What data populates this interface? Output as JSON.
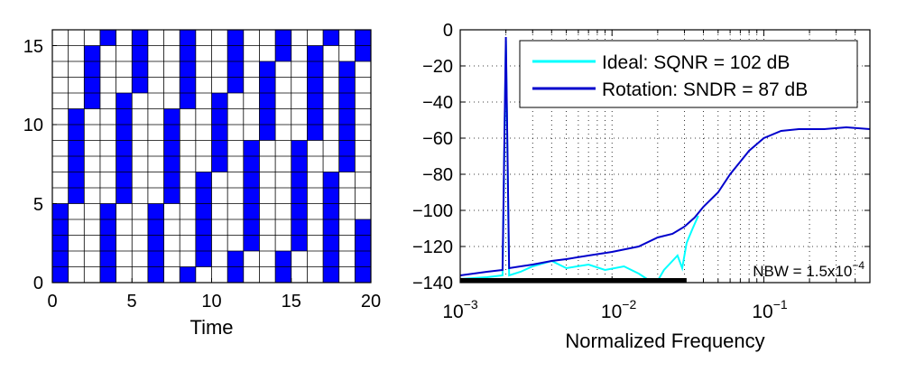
{
  "chart_data": [
    {
      "type": "heatmap",
      "xlabel": "Time",
      "ylabel": "",
      "xlim": [
        0,
        20
      ],
      "ylim": [
        0,
        16
      ],
      "x_ticks": [
        "0",
        "5",
        "10",
        "15",
        "20"
      ],
      "y_ticks": [
        "0",
        "5",
        "10",
        "15"
      ],
      "fill_color": "#0000FF",
      "grid": true,
      "columns": [
        {
          "t": 0,
          "filled_rows": [
            [
              0,
              5
            ]
          ]
        },
        {
          "t": 1,
          "filled_rows": [
            [
              5,
              11
            ]
          ]
        },
        {
          "t": 2,
          "filled_rows": [
            [
              11,
              15
            ]
          ]
        },
        {
          "t": 3,
          "filled_rows": [
            [
              0,
              5
            ],
            [
              15,
              16
            ]
          ]
        },
        {
          "t": 4,
          "filled_rows": [
            [
              5,
              12
            ]
          ]
        },
        {
          "t": 5,
          "filled_rows": [
            [
              12,
              16
            ]
          ]
        },
        {
          "t": 6,
          "filled_rows": [
            [
              0,
              5
            ]
          ]
        },
        {
          "t": 7,
          "filled_rows": [
            [
              5,
              11
            ]
          ]
        },
        {
          "t": 8,
          "filled_rows": [
            [
              0,
              1
            ],
            [
              11,
              16
            ]
          ]
        },
        {
          "t": 9,
          "filled_rows": [
            [
              1,
              7
            ]
          ]
        },
        {
          "t": 10,
          "filled_rows": [
            [
              7,
              12
            ]
          ]
        },
        {
          "t": 11,
          "filled_rows": [
            [
              0,
              2
            ],
            [
              12,
              16
            ]
          ]
        },
        {
          "t": 12,
          "filled_rows": [
            [
              2,
              9
            ]
          ]
        },
        {
          "t": 13,
          "filled_rows": [
            [
              9,
              14
            ]
          ]
        },
        {
          "t": 14,
          "filled_rows": [
            [
              0,
              2
            ],
            [
              14,
              16
            ]
          ]
        },
        {
          "t": 15,
          "filled_rows": [
            [
              2,
              9
            ]
          ]
        },
        {
          "t": 16,
          "filled_rows": [
            [
              9,
              15
            ]
          ]
        },
        {
          "t": 17,
          "filled_rows": [
            [
              0,
              7
            ],
            [
              15,
              16
            ]
          ]
        },
        {
          "t": 18,
          "filled_rows": [
            [
              7,
              14
            ]
          ]
        },
        {
          "t": 19,
          "filled_rows": [
            [
              0,
              4
            ],
            [
              14,
              16
            ]
          ]
        }
      ]
    },
    {
      "type": "line",
      "xlabel": "Normalized Frequency",
      "ylabel": "",
      "x_scale": "log",
      "xlim": [
        0.001,
        0.5
      ],
      "ylim": [
        -140,
        0
      ],
      "x_ticks": [
        {
          "value": 0.001,
          "base": "10",
          "exp": "−3"
        },
        {
          "value": 0.01,
          "base": "10",
          "exp": "−2"
        },
        {
          "value": 0.1,
          "base": "10",
          "exp": "−1"
        }
      ],
      "y_ticks": [
        "0",
        "−20",
        "−40",
        "−60",
        "−80",
        "−100",
        "−120",
        "−140"
      ],
      "grid": true,
      "grid_style": "dotted",
      "legend_position": "top-right",
      "series": [
        {
          "name": "Ideal: SQNR = 102 dB",
          "color": "#00FFFF",
          "points": [
            [
              0.001,
              -138
            ],
            [
              0.0015,
              -137
            ],
            [
              0.0019,
              -136
            ],
            [
              0.002,
              -6
            ],
            [
              0.0021,
              -136
            ],
            [
              0.0025,
              -134
            ],
            [
              0.003,
              -131
            ],
            [
              0.004,
              -128
            ],
            [
              0.005,
              -132
            ],
            [
              0.007,
              -130
            ],
            [
              0.009,
              -133
            ],
            [
              0.012,
              -131
            ],
            [
              0.015,
              -135
            ],
            [
              0.017,
              -138
            ],
            [
              0.02,
              -139
            ],
            [
              0.022,
              -133
            ],
            [
              0.025,
              -128
            ],
            [
              0.027,
              -125
            ],
            [
              0.029,
              -132
            ],
            [
              0.031,
              -118
            ],
            [
              0.034,
              -110
            ],
            [
              0.037,
              -103
            ]
          ]
        },
        {
          "name": "Rotation: SNDR = 87 dB",
          "color": "#0000CC",
          "points": [
            [
              0.001,
              -136
            ],
            [
              0.0015,
              -134
            ],
            [
              0.0019,
              -133
            ],
            [
              0.002,
              -4
            ],
            [
              0.0021,
              -132
            ],
            [
              0.0025,
              -131
            ],
            [
              0.003,
              -130
            ],
            [
              0.004,
              -128
            ],
            [
              0.005,
              -127
            ],
            [
              0.007,
              -125
            ],
            [
              0.01,
              -123
            ],
            [
              0.015,
              -120
            ],
            [
              0.02,
              -115
            ],
            [
              0.025,
              -113
            ],
            [
              0.03,
              -109
            ],
            [
              0.035,
              -104
            ],
            [
              0.04,
              -98
            ],
            [
              0.05,
              -90
            ],
            [
              0.06,
              -80
            ],
            [
              0.07,
              -73
            ],
            [
              0.08,
              -67
            ],
            [
              0.1,
              -60
            ],
            [
              0.13,
              -56
            ],
            [
              0.17,
              -55
            ],
            [
              0.25,
              -55
            ],
            [
              0.35,
              -54
            ],
            [
              0.5,
              -55
            ]
          ]
        }
      ],
      "threshold_bar": {
        "x_from": 0.001,
        "x_to": 0.031,
        "y": -140,
        "color": "#000000"
      },
      "annotation": {
        "text": "NBW = 1.5x10",
        "exp": "−4"
      }
    }
  ]
}
